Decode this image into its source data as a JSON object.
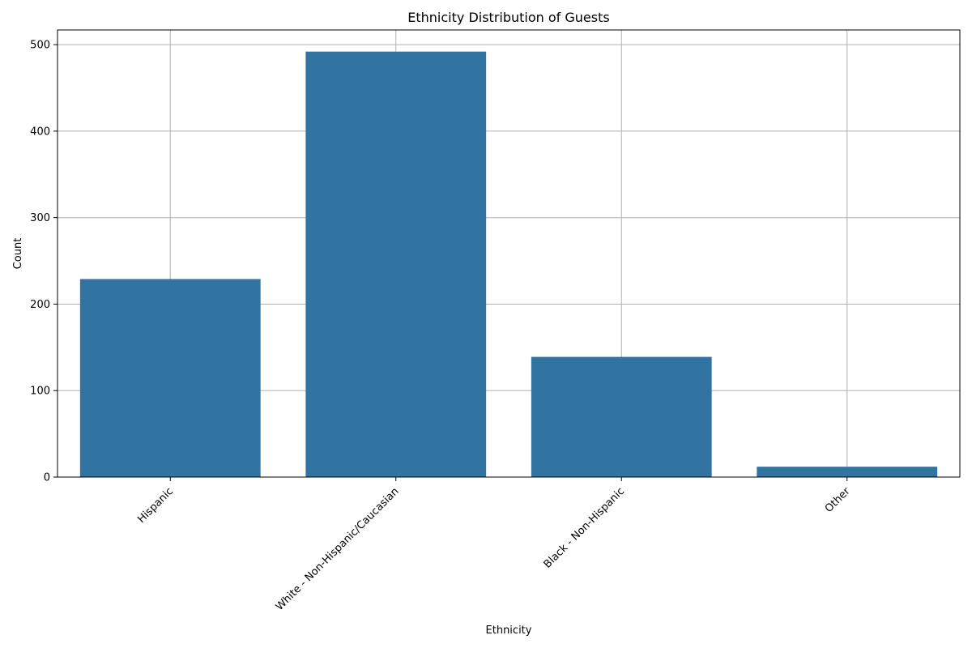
{
  "chart_data": {
    "type": "bar",
    "title": "Ethnicity Distribution of Guests",
    "xlabel": "Ethnicity",
    "ylabel": "Count",
    "categories": [
      "Hispanic",
      "White - Non-Hispanic/Caucasian",
      "Black - Non-Hispanic",
      "Other"
    ],
    "values": [
      229,
      492,
      139,
      12
    ],
    "ylim": [
      0,
      517
    ],
    "yticks": [
      0,
      100,
      200,
      300,
      400,
      500
    ],
    "grid": true,
    "bar_color": "#3274a1",
    "x_tick_rotation": 45
  }
}
